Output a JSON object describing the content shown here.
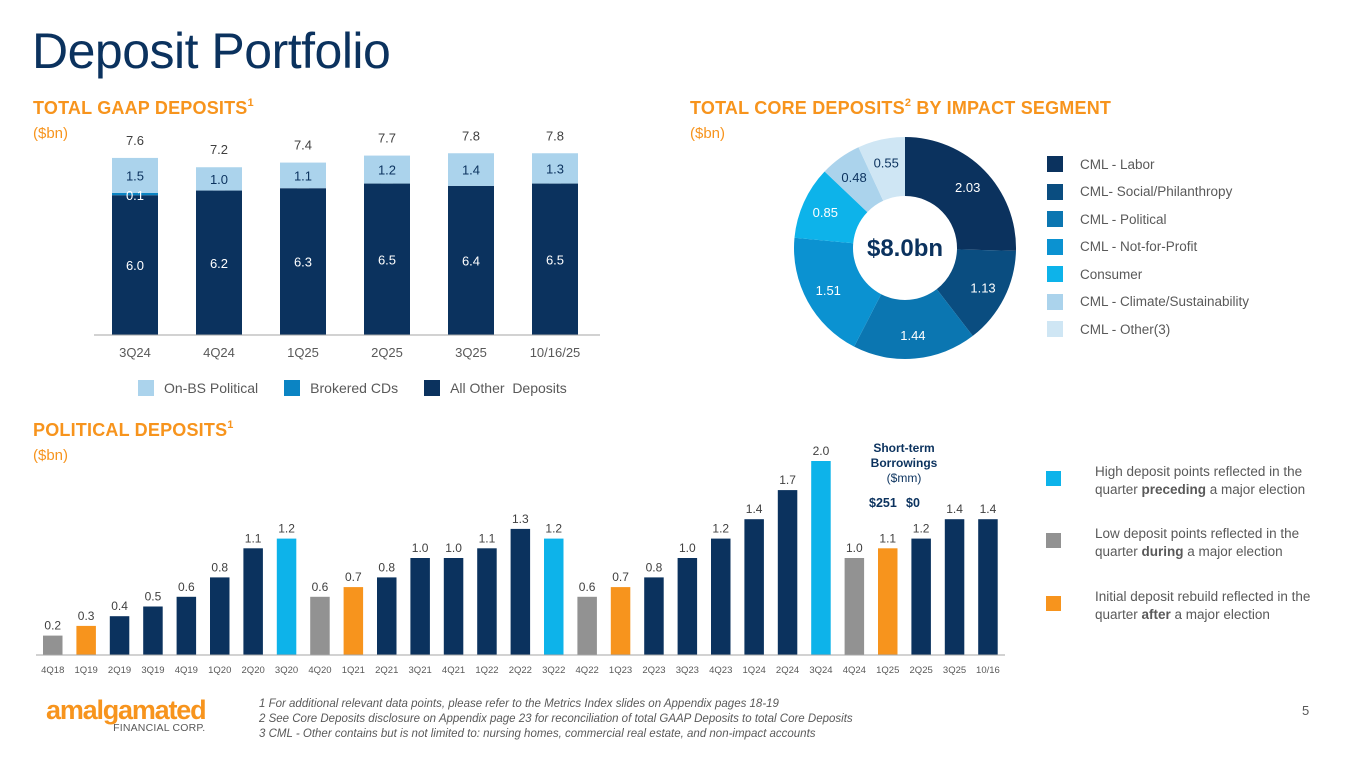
{
  "page": {
    "title": "Deposit Portfolio",
    "page_number": "5"
  },
  "gaap_section": {
    "title": "TOTAL GAAP DEPOSITS",
    "footnote_ref": "1",
    "unit": "($bn)"
  },
  "core_section": {
    "title_pre": "TOTAL CORE DEPOSITS",
    "footnote_ref": "2",
    "title_post": " BY IMPACT SEGMENT",
    "unit": "($bn)",
    "center_label": "$8.0bn"
  },
  "political_section": {
    "title": "POLITICAL DEPOSITS",
    "footnote_ref": "1",
    "unit": "($bn)",
    "short_term_borrowings": {
      "title_line1": "Short-term",
      "title_line2": "Borrowings",
      "unit": "($mm)",
      "values": [
        "$251",
        "$0"
      ]
    },
    "election_legend": [
      {
        "color": "#0db3ea",
        "pre": "High deposit points reflected in the quarter ",
        "bold": "preceding",
        "post": " a major election"
      },
      {
        "color": "#929292",
        "pre": "Low deposit points reflected in the quarter ",
        "bold": "during",
        "post": " a major election"
      },
      {
        "color": "#f7941d",
        "pre": "Initial deposit rebuild reflected in the quarter ",
        "bold": "after",
        "post": " a major election"
      }
    ]
  },
  "chart_data": [
    {
      "type": "bar",
      "stacked": true,
      "title": "TOTAL GAAP DEPOSITS",
      "ylabel": "($bn)",
      "categories": [
        "3Q24",
        "4Q24",
        "1Q25",
        "2Q25",
        "3Q25",
        "10/16/25"
      ],
      "series": [
        {
          "name": "All Other  Deposits",
          "color": "#0b325e",
          "values": [
            6.0,
            6.2,
            6.3,
            6.5,
            6.4,
            6.5
          ],
          "labels": [
            "6.0",
            "6.2",
            "6.3",
            "6.5",
            "6.4",
            "6.5"
          ]
        },
        {
          "name": "Brokered CDs",
          "color": "#0b84c3",
          "values": [
            0.1,
            0.0,
            0.0,
            0.0,
            0.0,
            0.0
          ],
          "labels": [
            "0.1",
            "",
            "",
            "",
            "",
            ""
          ]
        },
        {
          "name": "On-BS Political",
          "color": "#abd3ec",
          "values": [
            1.5,
            1.0,
            1.1,
            1.2,
            1.4,
            1.3
          ],
          "labels": [
            "1.5",
            "1.0",
            "1.1",
            "1.2",
            "1.4",
            "1.3"
          ]
        }
      ],
      "totals": [
        "7.6",
        "7.2",
        "7.4",
        "7.7",
        "7.8",
        "7.8"
      ],
      "total_values": [
        7.6,
        7.2,
        7.4,
        7.7,
        7.8,
        7.8
      ],
      "ylim": [
        0,
        8
      ],
      "grid": false,
      "legend_position": "bottom"
    },
    {
      "type": "pie",
      "donut": true,
      "title": "TOTAL CORE DEPOSITS BY IMPACT SEGMENT",
      "unit": "($bn)",
      "center_label": "$8.0bn",
      "slices": [
        {
          "name": "CML - Labor",
          "value": 2.03,
          "label": "2.03",
          "color": "#0b325e",
          "label_color": "#ffffff"
        },
        {
          "name": "CML- Social/Philanthropy",
          "value": 1.13,
          "label": "1.13",
          "color": "#0a4d80",
          "label_color": "#ffffff"
        },
        {
          "name": "CML - Political",
          "value": 1.44,
          "label": "1.44",
          "color": "#0b76b1",
          "label_color": "#ffffff"
        },
        {
          "name": "CML - Not-for-Profit",
          "value": 1.51,
          "label": "1.51",
          "color": "#0b92d1",
          "label_color": "#ffffff"
        },
        {
          "name": "Consumer",
          "value": 0.85,
          "label": "0.85",
          "color": "#0db3ea",
          "label_color": "#ffffff"
        },
        {
          "name": "CML - Climate/Sustainability",
          "value": 0.48,
          "label": "0.48",
          "color": "#abd3ec",
          "label_color": "#0b325e"
        },
        {
          "name": "CML - Other(3)",
          "value": 0.55,
          "label": "0.55",
          "color": "#cfe6f4",
          "label_color": "#0b325e"
        }
      ],
      "legend_position": "right"
    },
    {
      "type": "bar",
      "title": "POLITICAL DEPOSITS",
      "ylabel": "($bn)",
      "categories": [
        "4Q18",
        "1Q19",
        "2Q19",
        "3Q19",
        "4Q19",
        "1Q20",
        "2Q20",
        "3Q20",
        "4Q20",
        "1Q21",
        "2Q21",
        "3Q21",
        "4Q21",
        "1Q22",
        "2Q22",
        "3Q22",
        "4Q22",
        "1Q23",
        "2Q23",
        "3Q23",
        "4Q23",
        "1Q24",
        "2Q24",
        "3Q24",
        "4Q24",
        "1Q25",
        "2Q25",
        "3Q25",
        "10/16"
      ],
      "values": [
        0.2,
        0.3,
        0.4,
        0.5,
        0.6,
        0.8,
        1.1,
        1.2,
        0.6,
        0.7,
        0.8,
        1.0,
        1.0,
        1.1,
        1.3,
        1.2,
        0.6,
        0.7,
        0.8,
        1.0,
        1.2,
        1.4,
        1.7,
        2.0,
        1.0,
        1.1,
        1.2,
        1.4,
        1.4
      ],
      "labels": [
        "0.2",
        "0.3",
        "0.4",
        "0.5",
        "0.6",
        "0.8",
        "1.1",
        "1.2",
        "0.6",
        "0.7",
        "0.8",
        "1.0",
        "1.0",
        "1.1",
        "1.3",
        "1.2",
        "0.6",
        "0.7",
        "0.8",
        "1.0",
        "1.2",
        "1.4",
        "1.7",
        "2.0",
        "1.0",
        "1.1",
        "1.2",
        "1.4",
        "1.4"
      ],
      "bar_types": [
        "during",
        "after",
        "normal",
        "normal",
        "normal",
        "normal",
        "normal",
        "preceding",
        "during",
        "after",
        "normal",
        "normal",
        "normal",
        "normal",
        "normal",
        "preceding",
        "during",
        "after",
        "normal",
        "normal",
        "normal",
        "normal",
        "normal",
        "preceding",
        "during",
        "after",
        "normal",
        "normal",
        "normal"
      ],
      "type_colors": {
        "normal": "#0b325e",
        "preceding": "#0db3ea",
        "during": "#929292",
        "after": "#f7941d"
      },
      "ylim": [
        0,
        2.0
      ],
      "grid": false
    }
  ],
  "footer": {
    "logo_main": "amalgamated",
    "logo_sub": "FINANCIAL CORP.",
    "footnotes": [
      "1 For additional relevant data points, please refer to the Metrics Index slides on Appendix pages 18-19",
      "2 See Core Deposits disclosure on Appendix page 23 for reconciliation of total GAAP Deposits to total Core Deposits",
      "3 CML - Other contains but is not limited to: nursing homes, commercial real estate, and non-impact accounts"
    ]
  }
}
